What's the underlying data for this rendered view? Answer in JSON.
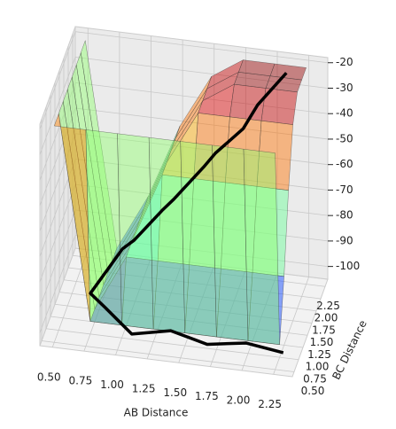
{
  "chart_data": {
    "type": "surface3d",
    "xlabel": "AB Distance",
    "ylabel": "BC Distance",
    "xlim": [
      0.4,
      2.4
    ],
    "ylim": [
      0.4,
      2.4
    ],
    "zlim": [
      -105,
      -18
    ],
    "xticks": [
      {
        "value": 0.5,
        "label": "0.50"
      },
      0.75,
      {
        "value": 1,
        "label": "1.00"
      },
      1.25,
      {
        "value": 1.5,
        "label": "1.50"
      },
      1.75,
      {
        "value": 2,
        "label": "2.00"
      },
      2.25
    ],
    "yticks": [
      {
        "value": 0.5,
        "label": "0.50"
      },
      0.75,
      {
        "value": 1,
        "label": "1.00"
      },
      1.25,
      {
        "value": 1.5,
        "label": "1.50"
      },
      1.75,
      {
        "value": 2,
        "label": "2.00"
      },
      2.25
    ],
    "zticks": [
      -20,
      -30,
      -40,
      -50,
      -60,
      -70,
      -80,
      -90,
      -100
    ],
    "surface": {
      "x": [
        0.5,
        0.75,
        1,
        1.25,
        1.5,
        1.75,
        2,
        2.25
      ],
      "y": [
        0.5,
        0.75,
        1,
        1.25,
        1.5,
        1.75,
        2,
        2.25
      ],
      "z": [
        [
          -20,
          -20,
          -20,
          -20,
          -20,
          -20,
          -20,
          -20
        ],
        [
          -20,
          -100,
          -100,
          -100,
          -100,
          -100,
          -100,
          -100
        ],
        [
          -20,
          -100,
          -78,
          -78,
          -78,
          -78,
          -78,
          -78
        ],
        [
          -20,
          -100,
          -78,
          -49,
          -49,
          -49,
          -49,
          -49
        ],
        [
          -20,
          -100,
          -78,
          -49,
          -28,
          -28,
          -28,
          -28
        ],
        [
          -20,
          -100,
          -78,
          -49,
          -28,
          -20,
          -20,
          -20
        ],
        [
          -20,
          -100,
          -78,
          -49,
          -28,
          -20,
          -20,
          -20
        ],
        [
          -20,
          -100,
          -78,
          -49,
          -28,
          -20,
          -20,
          -20
        ]
      ]
    },
    "trajectory": {
      "color": "#000000",
      "x": [
        2.3,
        2.0,
        1.7,
        1.4,
        1.1,
        0.85,
        0.66,
        0.9,
        1.0,
        1.2,
        1.3,
        1.5,
        1.6,
        1.8,
        1.9,
        2.1
      ],
      "y": [
        0.6,
        0.65,
        0.58,
        0.66,
        0.6,
        0.9,
        1.4,
        1.5,
        1.45,
        1.6,
        1.55,
        1.8,
        1.75,
        1.9,
        2.0,
        2.2
      ],
      "z": [
        -100,
        -99,
        -100,
        -98,
        -100,
        -97,
        -102,
        -85,
        -80,
        -70,
        -64,
        -55,
        -48,
        -40,
        -32,
        -22
      ]
    }
  }
}
